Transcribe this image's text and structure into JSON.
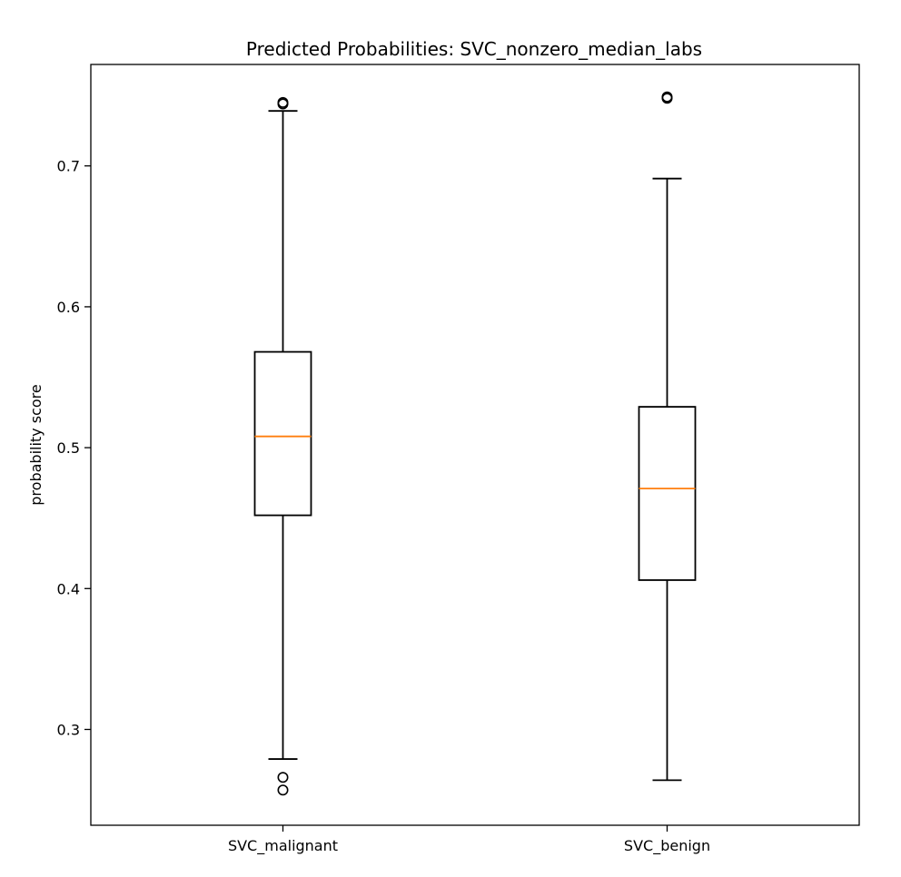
{
  "chart_data": {
    "type": "box",
    "title": "Predicted Probabilities: SVC_nonzero_median_labs",
    "xlabel": "",
    "ylabel": "probability score",
    "ylim": [
      0.232,
      0.772
    ],
    "yticks": [
      0.3,
      0.4,
      0.5,
      0.6,
      0.7
    ],
    "ytick_labels": [
      "0.3",
      "0.4",
      "0.5",
      "0.6",
      "0.7"
    ],
    "grid": false,
    "categories": [
      "SVC_malignant",
      "SVC_benign"
    ],
    "boxes": [
      {
        "label": "SVC_malignant",
        "whisker_low": 0.279,
        "q1": 0.452,
        "median": 0.508,
        "q3": 0.568,
        "whisker_high": 0.739,
        "outliers": [
          0.744,
          0.745,
          0.266,
          0.257
        ]
      },
      {
        "label": "SVC_benign",
        "whisker_low": 0.264,
        "q1": 0.406,
        "median": 0.471,
        "q3": 0.529,
        "whisker_high": 0.691,
        "outliers": [
          0.749,
          0.748
        ]
      }
    ],
    "colors": {
      "box": "#000000",
      "median": "#ff7f0e",
      "outlier": "#000000"
    }
  }
}
